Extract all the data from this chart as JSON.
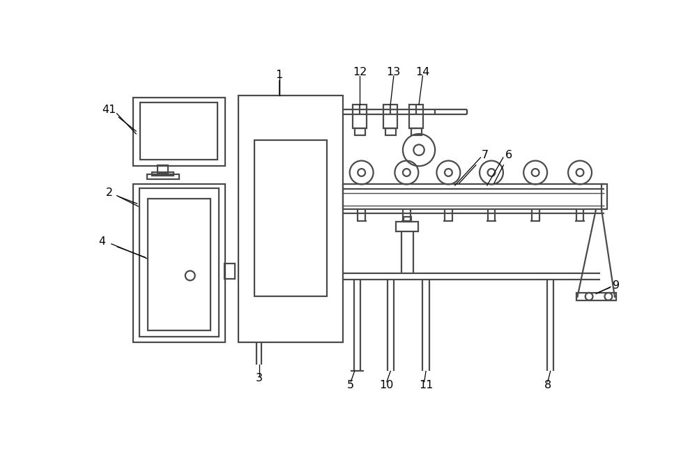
{
  "bg_color": "#ffffff",
  "lc": "#4a4a4a",
  "lw": 1.6,
  "tlw": 1.0,
  "fig_w": 10.0,
  "fig_h": 6.57
}
